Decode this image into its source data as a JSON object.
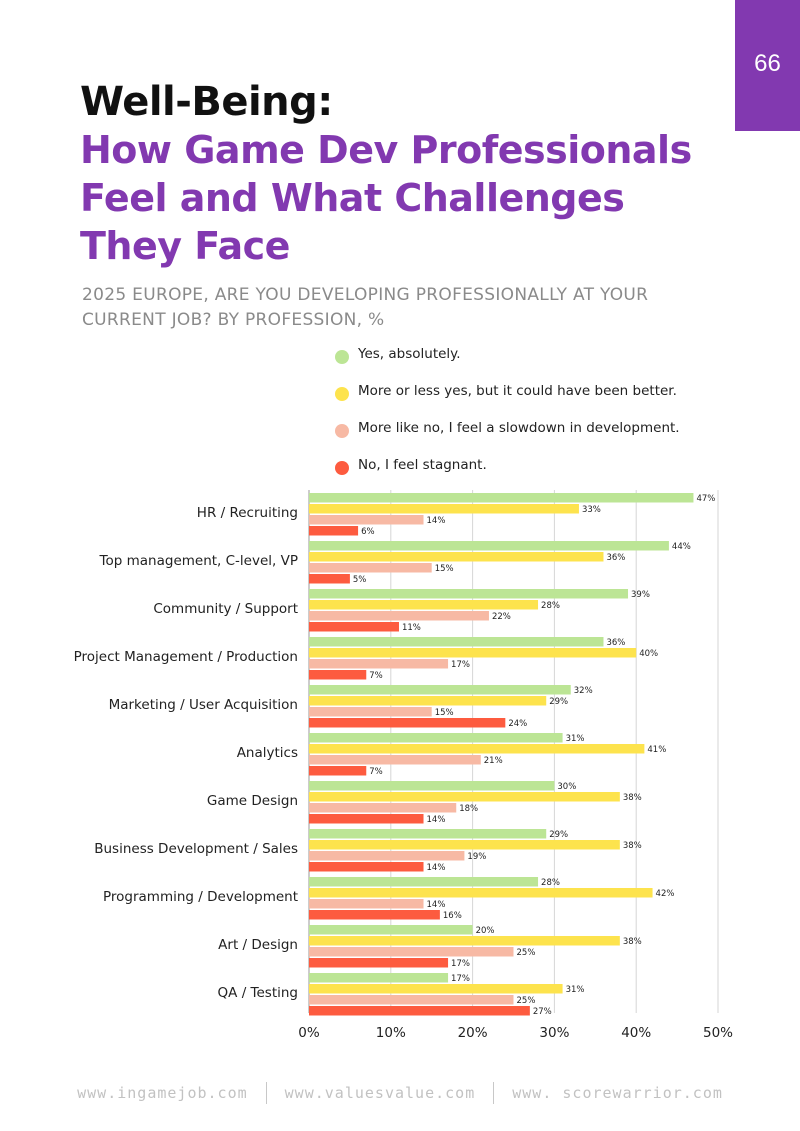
{
  "page_number": "66",
  "title": {
    "line1": "Well-Being:",
    "line2": [
      "How Game Dev Professionals",
      "Feel and What Challenges",
      "They Face"
    ]
  },
  "subtitle": [
    "2025 EUROPE, ARE YOU DEVELOPING PROFESSIONALLY AT YOUR",
    "CURRENT JOB? BY PROFESSION, %"
  ],
  "footer": [
    "www.ingamejob.com",
    "www.valuesvalue.com",
    "www. scorewarrior.com"
  ],
  "chart_data": {
    "type": "bar",
    "orientation": "horizontal",
    "categories": [
      "HR / Recruiting",
      "Top management, C-level, VP",
      "Community / Support",
      "Project Management / Production",
      "Marketing / User Acquisition",
      "Analytics",
      "Game Design",
      "Business Development / Sales",
      "Programming / Development",
      "Art / Design",
      "QA / Testing"
    ],
    "series": [
      {
        "name": "Yes, absolutely.",
        "color": "#bce595",
        "values": [
          47,
          44,
          39,
          36,
          32,
          31,
          30,
          29,
          28,
          20,
          17
        ]
      },
      {
        "name": "More or less yes, but it could have been better.",
        "color": "#fde34d",
        "values": [
          33,
          36,
          28,
          40,
          29,
          41,
          38,
          38,
          42,
          38,
          31
        ]
      },
      {
        "name": "More like no, I feel a slowdown in development.",
        "color": "#f7b9a4",
        "values": [
          14,
          15,
          22,
          17,
          15,
          21,
          18,
          19,
          14,
          25,
          25
        ]
      },
      {
        "name": "No, I feel stagnant.",
        "color": "#fd5b3f",
        "values": [
          6,
          5,
          11,
          7,
          24,
          7,
          14,
          14,
          16,
          17,
          27
        ]
      }
    ],
    "value_suffix": "%",
    "xlim": [
      0,
      50
    ],
    "xticks": [
      "0%",
      "10%",
      "20%",
      "30%",
      "40%",
      "50%"
    ],
    "grid": true,
    "legend_position": "top"
  }
}
